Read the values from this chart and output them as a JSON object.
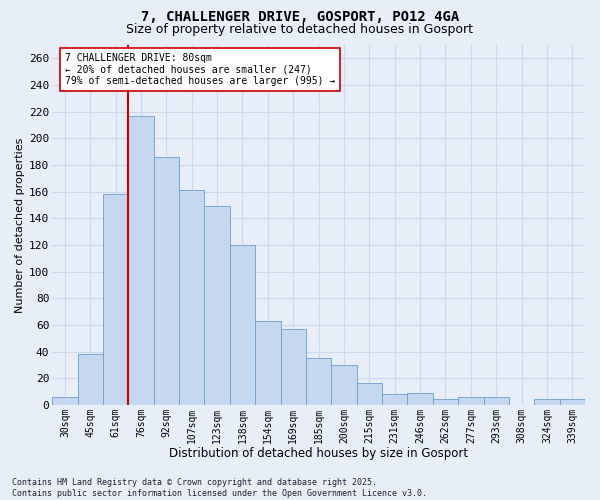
{
  "title": "7, CHALLENGER DRIVE, GOSPORT, PO12 4GA",
  "subtitle": "Size of property relative to detached houses in Gosport",
  "xlabel": "Distribution of detached houses by size in Gosport",
  "ylabel": "Number of detached properties",
  "categories": [
    "30sqm",
    "45sqm",
    "61sqm",
    "76sqm",
    "92sqm",
    "107sqm",
    "123sqm",
    "138sqm",
    "154sqm",
    "169sqm",
    "185sqm",
    "200sqm",
    "215sqm",
    "231sqm",
    "246sqm",
    "262sqm",
    "277sqm",
    "293sqm",
    "308sqm",
    "324sqm",
    "339sqm"
  ],
  "values": [
    6,
    38,
    158,
    217,
    186,
    161,
    149,
    120,
    63,
    57,
    35,
    30,
    16,
    8,
    9,
    4,
    6,
    6,
    0,
    4,
    4
  ],
  "bar_color": "#c5d8f0",
  "bar_edge_color": "#6b9fcc",
  "vline_x": 2.5,
  "vline_color": "#cc0000",
  "annotation_text": "7 CHALLENGER DRIVE: 80sqm\n← 20% of detached houses are smaller (247)\n79% of semi-detached houses are larger (995) →",
  "annotation_box_color": "#ffffff",
  "annotation_box_edge": "#cc0000",
  "ylim": [
    0,
    270
  ],
  "yticks": [
    0,
    20,
    40,
    60,
    80,
    100,
    120,
    140,
    160,
    180,
    200,
    220,
    240,
    260
  ],
  "background_color": "#e8eef8",
  "grid_color": "#d0d8e8",
  "footer": "Contains HM Land Registry data © Crown copyright and database right 2025.\nContains public sector information licensed under the Open Government Licence v3.0.",
  "title_fontsize": 10,
  "subtitle_fontsize": 9,
  "xlabel_fontsize": 8.5,
  "ylabel_fontsize": 8,
  "annotation_fontsize": 7,
  "footer_fontsize": 6,
  "ytick_fontsize": 8,
  "xtick_fontsize": 7
}
